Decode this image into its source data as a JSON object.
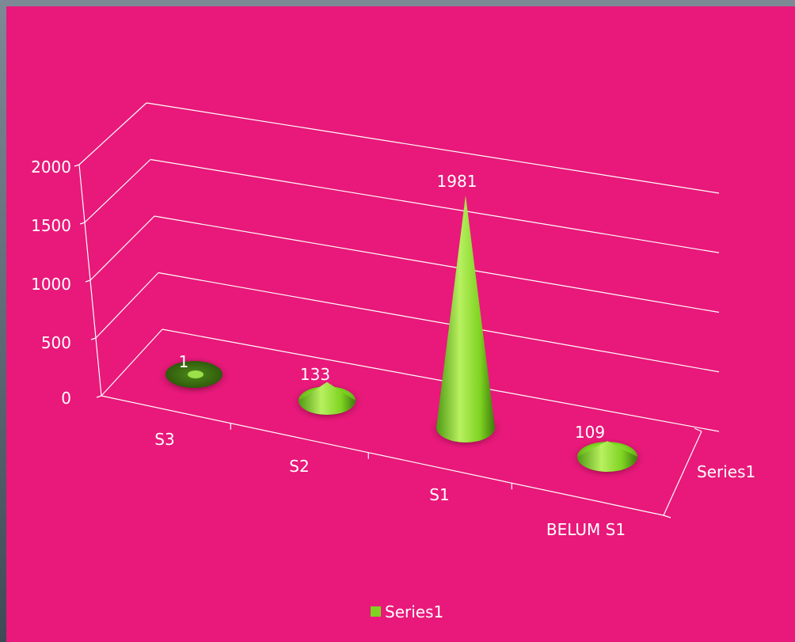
{
  "colors": {
    "background": "#e8197a",
    "cone": "#7ed321",
    "cone_dark": "#3d7a0c",
    "text": "#ffffff",
    "grid": "#ffffff"
  },
  "chart_data": {
    "type": "bar",
    "shape": "3d-cone",
    "categories": [
      "S3",
      "S2",
      "S1",
      "BELUM S1"
    ],
    "series": [
      {
        "name": "Series1",
        "values": [
          1,
          133,
          1981,
          109
        ]
      }
    ],
    "data_labels": [
      "1",
      "133",
      "1981",
      "109"
    ],
    "y_ticks": [
      "0",
      "500",
      "1000",
      "1500",
      "2000"
    ],
    "depth_axis_label": "Series1",
    "ylim": [
      0,
      2000
    ],
    "grid": true,
    "legend": {
      "position": "bottom",
      "entries": [
        "Series1"
      ]
    }
  }
}
